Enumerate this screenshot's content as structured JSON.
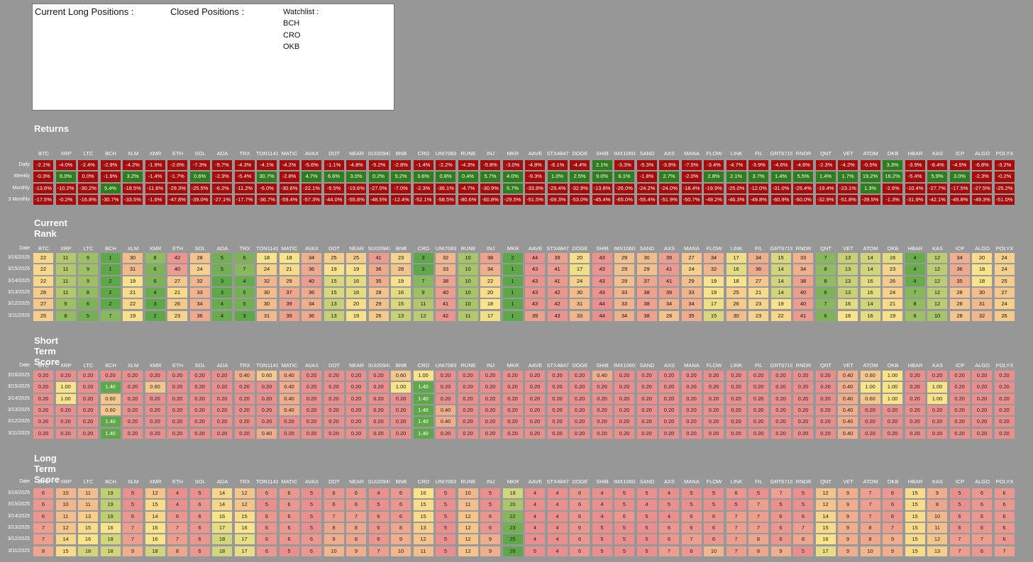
{
  "positions": {
    "long_label": "Current Long Positions :",
    "closed_label": "Closed Positions :",
    "watchlist_label": "Watchlist :",
    "watchlist": [
      "BCH",
      "CRO",
      "OKB"
    ]
  },
  "tickers": [
    "BTC",
    "XRP",
    "LTC",
    "BCH",
    "XLM",
    "XMR",
    "ETH",
    "SOL",
    "ADA",
    "TRX",
    "TON11419",
    "MATIC",
    "AVAX",
    "DOT",
    "NEAR",
    "SUI20947",
    "BNB",
    "CRO",
    "UNI7083",
    "RUNE",
    "INJ",
    "MKR",
    "AAVE",
    "STX4847",
    "DOGE",
    "SHIB",
    "IMX10603",
    "SAND",
    "AXS",
    "MANA",
    "FLOW",
    "LINK",
    "FIL",
    "GRT6719",
    "RNDR",
    "QNT",
    "VET",
    "ATOM",
    "OKB",
    "HBAR",
    "KAS",
    "ICP",
    "ALGO",
    "POLYX"
  ],
  "colors": {
    "background": "#979797",
    "returns_negative": "#a50d0d",
    "returns_positive": "#2f7d1e",
    "scale_red": "#e9908f",
    "scale_yellow": "#f9e48c",
    "scale_green": "#5fa84a"
  },
  "returns": {
    "title": "Returns",
    "rows": [
      {
        "label": "Daily",
        "values": [
          "-2.1%",
          "-4.0%",
          "-2.4%",
          "-2.9%",
          "-4.2%",
          "-1.9%",
          "-2.6%",
          "-7.3%",
          "-5.7%",
          "-4.3%",
          "-4.1%",
          "-4.2%",
          "-5.6%",
          "-1.1%",
          "-4.8%",
          "-5.2%",
          "-2.8%",
          "-1.4%",
          "-2.2%",
          "-4.3%",
          "-5.8%",
          "-3.0%",
          "-4.8%",
          "-6.1%",
          "-4.4%",
          "2.1%",
          "-3.3%",
          "-5.3%",
          "-3.8%",
          "-7.5%",
          "-3.4%",
          "-4.7%",
          "-3.9%",
          "-4.6%",
          "-4.6%",
          "-2.3%",
          "-4.2%",
          "-0.5%",
          "3.3%",
          "-3.9%",
          "-8.4%",
          "-4.5%",
          "-6.8%",
          "-3.2%"
        ]
      },
      {
        "label": "Weekly",
        "values": [
          "-0.3%",
          "6.0%",
          "0.0%",
          "-1.9%",
          "3.2%",
          "-1.4%",
          "-1.7%",
          "0.6%",
          "-2.3%",
          "-5.4%",
          "30.7%",
          "-2.8%",
          "4.7%",
          "6.6%",
          "3.0%",
          "0.2%",
          "9.2%",
          "3.6%",
          "0.8%",
          "0.4%",
          "5.7%",
          "4.0%",
          "-9.3%",
          "1.0%",
          "2.5%",
          "9.0%",
          "6.1%",
          "-1.8%",
          "2.7%",
          "-2.0%",
          "2.8%",
          "2.1%",
          "3.7%",
          "1.4%",
          "5.5%",
          "1.4%",
          "1.7%",
          "19.2%",
          "16.2%",
          "-5.4%",
          "5.9%",
          "3.0%",
          "-2.3%",
          "-0.2%"
        ]
      },
      {
        "label": "Monthly",
        "values": [
          "-13.6%",
          "-10.2%",
          "-30.2%",
          "5.4%",
          "-18.5%",
          "-11.6%",
          "-29.3%",
          "-25.5%",
          "-6.2%",
          "-11.2%",
          "-6.0%",
          "-30.6%",
          "-22.1%",
          "-9.5%",
          "-19.6%",
          "-27.0%",
          "-7.0%",
          "-2.3%",
          "-36.1%",
          "-4.7%",
          "-30.9%",
          "5.7%",
          "-33.8%",
          "-29.4%",
          "-32.9%",
          "-13.8%",
          "-26.0%",
          "-24.2%",
          "-24.0%",
          "-18.4%",
          "-19.9%",
          "-25.0%",
          "-12.0%",
          "-31.0%",
          "-25.4%",
          "-19.4%",
          "-23.1%",
          "1.3%",
          "-2.6%",
          "-10.4%",
          "-27.7%",
          "-17.5%",
          "-27.5%",
          "-25.2%"
        ]
      },
      {
        "label": "3 Monthly",
        "values": [
          "-17.5%",
          "-0.2%",
          "-16.8%",
          "-30.7%",
          "-33.5%",
          "-1.6%",
          "-47.8%",
          "-39.0%",
          "-27.1%",
          "-17.7%",
          "-36.7%",
          "-59.4%",
          "-57.3%",
          "-44.0%",
          "-55.8%",
          "-48.5%",
          "-12.4%",
          "-52.1%",
          "-58.5%",
          "-80.6%",
          "-60.8%",
          "-29.5%",
          "-51.5%",
          "-69.3%",
          "-53.0%",
          "-45.4%",
          "-65.0%",
          "-55.4%",
          "-51.9%",
          "-50.7%",
          "-49.2%",
          "-46.3%",
          "-49.8%",
          "-60.9%",
          "-60.0%",
          "-32.9%",
          "-51.8%",
          "-39.5%",
          "-1.3%",
          "-31.9%",
          "-42.1%",
          "-49.8%",
          "-49.3%",
          "-51.0%"
        ]
      }
    ]
  },
  "rank": {
    "title": "Current Rank",
    "date_label": "Date",
    "rows": [
      {
        "date": "3/16/2025",
        "values": [
          "22",
          "11",
          "9",
          "1",
          "30",
          "8",
          "42",
          "28",
          "5",
          "6",
          "18",
          "18",
          "34",
          "25",
          "25",
          "41",
          "23",
          "3",
          "32",
          "10",
          "38",
          "2",
          "44",
          "39",
          "20",
          "43",
          "29",
          "30",
          "39",
          "27",
          "34",
          "17",
          "34",
          "15",
          "33",
          "7",
          "13",
          "14",
          "16",
          "4",
          "12",
          "34",
          "20",
          "24"
        ]
      },
      {
        "date": "3/15/2025",
        "values": [
          "22",
          "11",
          "9",
          "1",
          "31",
          "6",
          "40",
          "24",
          "5",
          "7",
          "24",
          "21",
          "36",
          "19",
          "19",
          "36",
          "28",
          "3",
          "33",
          "10",
          "34",
          "1",
          "43",
          "41",
          "17",
          "43",
          "29",
          "29",
          "41",
          "24",
          "32",
          "16",
          "36",
          "14",
          "34",
          "8",
          "13",
          "14",
          "23",
          "4",
          "12",
          "36",
          "18",
          "24"
        ]
      },
      {
        "date": "3/14/2025",
        "values": [
          "22",
          "11",
          "9",
          "2",
          "19",
          "6",
          "27",
          "32",
          "3",
          "4",
          "32",
          "29",
          "40",
          "15",
          "16",
          "35",
          "19",
          "7",
          "38",
          "10",
          "22",
          "1",
          "43",
          "41",
          "24",
          "43",
          "29",
          "37",
          "41",
          "29",
          "19",
          "18",
          "27",
          "14",
          "38",
          "8",
          "13",
          "16",
          "26",
          "4",
          "12",
          "35",
          "18",
          "25"
        ]
      },
      {
        "date": "3/13/2025",
        "values": [
          "26",
          "11",
          "8",
          "2",
          "21",
          "4",
          "21",
          "33",
          "3",
          "5",
          "30",
          "37",
          "36",
          "15",
          "16",
          "28",
          "16",
          "9",
          "40",
          "10",
          "20",
          "1",
          "43",
          "42",
          "30",
          "43",
          "33",
          "38",
          "39",
          "33",
          "19",
          "25",
          "21",
          "14",
          "40",
          "6",
          "13",
          "16",
          "24",
          "7",
          "12",
          "28",
          "30",
          "27"
        ]
      },
      {
        "date": "3/12/2025",
        "values": [
          "27",
          "9",
          "6",
          "2",
          "22",
          "3",
          "26",
          "34",
          "4",
          "5",
          "30",
          "39",
          "34",
          "13",
          "20",
          "29",
          "15",
          "11",
          "41",
          "10",
          "18",
          "1",
          "43",
          "42",
          "31",
          "44",
          "33",
          "38",
          "34",
          "34",
          "17",
          "26",
          "23",
          "19",
          "40",
          "7",
          "16",
          "14",
          "21",
          "8",
          "12",
          "28",
          "31",
          "24"
        ]
      },
      {
        "date": "3/11/2025",
        "values": [
          "25",
          "8",
          "5",
          "7",
          "19",
          "2",
          "23",
          "36",
          "4",
          "3",
          "31",
          "39",
          "36",
          "13",
          "19",
          "26",
          "13",
          "12",
          "42",
          "11",
          "17",
          "1",
          "39",
          "43",
          "33",
          "44",
          "34",
          "38",
          "28",
          "35",
          "15",
          "30",
          "23",
          "22",
          "41",
          "6",
          "18",
          "16",
          "19",
          "9",
          "10",
          "28",
          "32",
          "26"
        ]
      }
    ]
  },
  "short_term": {
    "title": "Short Term Score",
    "date_label": "Date",
    "rows": [
      {
        "date": "3/16/2025",
        "values": [
          "0.20",
          "0.20",
          "0.20",
          "0.20",
          "0.20",
          "0.20",
          "0.20",
          "0.20",
          "0.20",
          "0.40",
          "0.60",
          "0.40",
          "0.20",
          "0.20",
          "0.20",
          "0.20",
          "0.60",
          "1.00",
          "0.20",
          "0.20",
          "0.20",
          "0.20",
          "0.20",
          "0.20",
          "0.20",
          "0.40",
          "0.20",
          "0.20",
          "0.20",
          "0.20",
          "0.20",
          "0.20",
          "0.20",
          "0.20",
          "0.20",
          "0.20",
          "0.40",
          "0.60",
          "1.00",
          "0.20",
          "0.20",
          "0.20",
          "0.20",
          "0.20"
        ]
      },
      {
        "date": "3/15/2025",
        "values": [
          "0.20",
          "1.00",
          "0.20",
          "1.40",
          "0.20",
          "0.60",
          "0.20",
          "0.20",
          "0.20",
          "0.20",
          "0.20",
          "0.40",
          "0.20",
          "0.20",
          "0.20",
          "0.20",
          "1.00",
          "1.40",
          "0.20",
          "0.20",
          "0.20",
          "0.20",
          "0.20",
          "0.20",
          "0.20",
          "0.20",
          "0.20",
          "0.20",
          "0.20",
          "0.20",
          "0.20",
          "0.20",
          "0.20",
          "0.20",
          "0.20",
          "0.20",
          "0.40",
          "1.00",
          "1.00",
          "0.20",
          "1.00",
          "0.20",
          "0.20",
          "0.20"
        ]
      },
      {
        "date": "3/14/2025",
        "values": [
          "0.20",
          "1.00",
          "0.20",
          "0.60",
          "0.20",
          "0.20",
          "0.20",
          "0.20",
          "0.20",
          "0.20",
          "0.20",
          "0.40",
          "0.20",
          "0.20",
          "0.20",
          "0.20",
          "0.20",
          "1.40",
          "0.20",
          "0.20",
          "0.20",
          "0.20",
          "0.20",
          "0.20",
          "0.20",
          "0.20",
          "0.20",
          "0.20",
          "0.20",
          "0.20",
          "0.20",
          "0.20",
          "0.20",
          "0.20",
          "0.20",
          "0.20",
          "0.40",
          "0.60",
          "1.00",
          "0.20",
          "1.00",
          "0.20",
          "0.20",
          "0.20"
        ]
      },
      {
        "date": "3/13/2025",
        "values": [
          "0.20",
          "0.20",
          "0.20",
          "0.60",
          "0.20",
          "0.20",
          "0.20",
          "0.20",
          "0.20",
          "0.20",
          "0.20",
          "0.40",
          "0.20",
          "0.20",
          "0.20",
          "0.20",
          "0.20",
          "1.40",
          "0.40",
          "0.20",
          "0.20",
          "0.20",
          "0.20",
          "0.20",
          "0.20",
          "0.20",
          "0.20",
          "0.20",
          "0.20",
          "0.20",
          "0.20",
          "0.20",
          "0.20",
          "0.20",
          "0.20",
          "0.20",
          "0.40",
          "0.20",
          "0.20",
          "0.20",
          "0.20",
          "0.20",
          "0.20",
          "0.20"
        ]
      },
      {
        "date": "3/12/2025",
        "values": [
          "0.20",
          "0.20",
          "0.20",
          "1.40",
          "0.20",
          "0.20",
          "0.20",
          "0.20",
          "0.20",
          "0.20",
          "0.20",
          "0.20",
          "0.20",
          "0.20",
          "0.20",
          "0.20",
          "0.20",
          "1.40",
          "0.40",
          "0.20",
          "0.20",
          "0.20",
          "0.20",
          "0.20",
          "0.20",
          "0.20",
          "0.20",
          "0.20",
          "0.20",
          "0.20",
          "0.20",
          "0.20",
          "0.20",
          "0.20",
          "0.20",
          "0.20",
          "0.40",
          "0.20",
          "0.20",
          "0.20",
          "0.20",
          "0.20",
          "0.20",
          "0.20"
        ]
      },
      {
        "date": "3/11/2025",
        "values": [
          "0.20",
          "0.20",
          "0.20",
          "1.40",
          "0.20",
          "0.20",
          "0.20",
          "0.20",
          "0.20",
          "0.20",
          "0.40",
          "0.20",
          "0.20",
          "0.20",
          "0.20",
          "0.20",
          "0.20",
          "1.40",
          "0.20",
          "0.20",
          "0.20",
          "0.20",
          "0.20",
          "0.20",
          "0.20",
          "0.20",
          "0.20",
          "0.20",
          "0.20",
          "0.20",
          "0.20",
          "0.20",
          "0.20",
          "0.20",
          "0.20",
          "0.20",
          "0.40",
          "0.20",
          "0.20",
          "0.20",
          "0.20",
          "0.20",
          "0.20",
          "0.20"
        ]
      }
    ]
  },
  "long_term": {
    "title": "Long Term Score",
    "date_label": "Date",
    "rows": [
      {
        "date": "3/16/2025",
        "values": [
          "6",
          "10",
          "11",
          "19",
          "5",
          "12",
          "4",
          "5",
          "14",
          "12",
          "6",
          "6",
          "5",
          "6",
          "6",
          "4",
          "6",
          "16",
          "5",
          "10",
          "5",
          "18",
          "4",
          "4",
          "6",
          "4",
          "5",
          "5",
          "4",
          "5",
          "5",
          "6",
          "5",
          "7",
          "5",
          "12",
          "9",
          "7",
          "6",
          "15",
          "9",
          "5",
          "6",
          "6"
        ]
      },
      {
        "date": "3/15/2025",
        "values": [
          "6",
          "10",
          "11",
          "19",
          "5",
          "15",
          "4",
          "6",
          "14",
          "12",
          "5",
          "6",
          "5",
          "6",
          "6",
          "5",
          "6",
          "15",
          "5",
          "11",
          "5",
          "20",
          "4",
          "4",
          "6",
          "4",
          "5",
          "4",
          "5",
          "5",
          "5",
          "5",
          "7",
          "5",
          "5",
          "12",
          "9",
          "7",
          "6",
          "15",
          "8",
          "5",
          "6",
          "6"
        ]
      },
      {
        "date": "3/14/2025",
        "values": [
          "6",
          "11",
          "13",
          "19",
          "6",
          "14",
          "6",
          "6",
          "16",
          "15",
          "6",
          "6",
          "5",
          "7",
          "7",
          "6",
          "6",
          "15",
          "5",
          "12",
          "6",
          "22",
          "4",
          "4",
          "6",
          "4",
          "6",
          "5",
          "4",
          "6",
          "6",
          "7",
          "7",
          "6",
          "6",
          "14",
          "9",
          "7",
          "6",
          "15",
          "10",
          "6",
          "6",
          "6"
        ]
      },
      {
        "date": "3/13/2025",
        "values": [
          "7",
          "12",
          "15",
          "16",
          "7",
          "16",
          "7",
          "6",
          "17",
          "16",
          "6",
          "6",
          "5",
          "8",
          "8",
          "6",
          "8",
          "13",
          "5",
          "12",
          "6",
          "23",
          "4",
          "4",
          "6",
          "5",
          "5",
          "5",
          "6",
          "6",
          "6",
          "7",
          "7",
          "6",
          "7",
          "15",
          "9",
          "8",
          "7",
          "15",
          "11",
          "6",
          "6",
          "6"
        ]
      },
      {
        "date": "3/12/2025",
        "values": [
          "7",
          "14",
          "16",
          "18",
          "7",
          "16",
          "7",
          "6",
          "18",
          "17",
          "6",
          "6",
          "6",
          "9",
          "8",
          "6",
          "9",
          "12",
          "5",
          "12",
          "9",
          "25",
          "4",
          "4",
          "6",
          "5",
          "5",
          "5",
          "6",
          "7",
          "6",
          "7",
          "8",
          "6",
          "8",
          "16",
          "9",
          "8",
          "9",
          "15",
          "12",
          "7",
          "7",
          "6"
        ]
      },
      {
        "date": "3/11/2025",
        "values": [
          "8",
          "15",
          "18",
          "18",
          "9",
          "18",
          "8",
          "6",
          "18",
          "17",
          "6",
          "5",
          "6",
          "10",
          "9",
          "7",
          "10",
          "11",
          "5",
          "12",
          "9",
          "26",
          "5",
          "4",
          "6",
          "5",
          "5",
          "5",
          "7",
          "6",
          "10",
          "7",
          "8",
          "9",
          "5",
          "17",
          "9",
          "10",
          "9",
          "15",
          "13",
          "7",
          "6",
          "7"
        ]
      }
    ]
  }
}
